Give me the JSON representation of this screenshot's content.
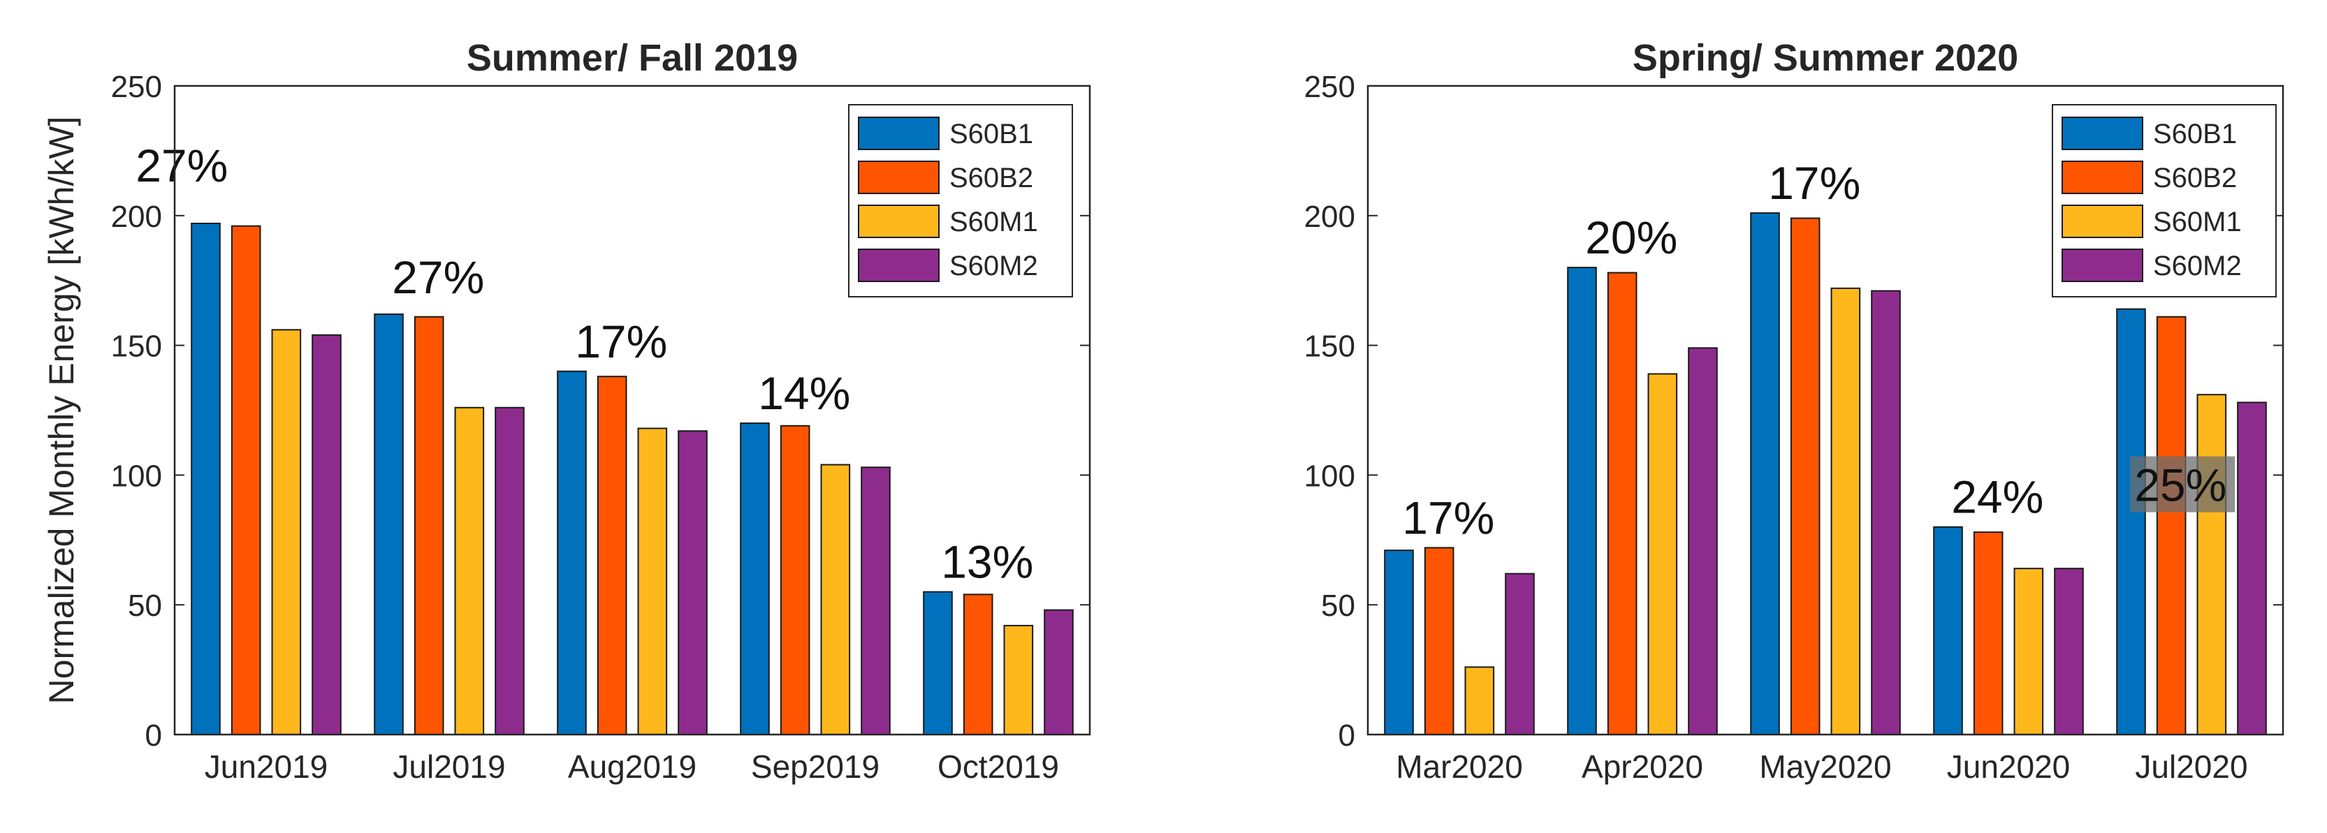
{
  "chart_data": [
    {
      "type": "bar",
      "title": "Summer/ Fall 2019",
      "ylabel": "Normalized Monthly Energy [kWh/kW]",
      "xlabel": "",
      "ylim": [
        0,
        250
      ],
      "yticks": [
        0,
        50,
        100,
        150,
        200,
        250
      ],
      "grid": false,
      "legend_position": "top-right",
      "categories": [
        "Jun2019",
        "Jul2019",
        "Aug2019",
        "Sep2019",
        "Oct2019"
      ],
      "series": [
        {
          "name": "S60B1",
          "color": "#0072BD",
          "values": [
            197,
            162,
            140,
            120,
            55
          ]
        },
        {
          "name": "S60B2",
          "color": "#FF5500",
          "values": [
            196,
            161,
            138,
            119,
            54
          ]
        },
        {
          "name": "S60M1",
          "color": "#FFB81C",
          "values": [
            156,
            126,
            118,
            104,
            42
          ]
        },
        {
          "name": "S60M2",
          "color": "#8E2C8E",
          "values": [
            154,
            126,
            117,
            103,
            48
          ]
        }
      ],
      "annotations": [
        "27%",
        "27%",
        "17%",
        "14%",
        "13%"
      ]
    },
    {
      "type": "bar",
      "title": "Spring/ Summer 2020",
      "ylabel": "",
      "xlabel": "",
      "ylim": [
        0,
        250
      ],
      "yticks": [
        0,
        50,
        100,
        150,
        200,
        250
      ],
      "grid": false,
      "legend_position": "top-right",
      "categories": [
        "Mar2020",
        "Apr2020",
        "May2020",
        "Jun2020",
        "Jul2020"
      ],
      "series": [
        {
          "name": "S60B1",
          "color": "#0072BD",
          "values": [
            71,
            180,
            201,
            80,
            164
          ]
        },
        {
          "name": "S60B2",
          "color": "#FF5500",
          "values": [
            72,
            178,
            199,
            78,
            161
          ]
        },
        {
          "name": "S60M1",
          "color": "#FFB81C",
          "values": [
            26,
            139,
            172,
            64,
            131
          ]
        },
        {
          "name": "S60M2",
          "color": "#8E2C8E",
          "values": [
            62,
            149,
            171,
            64,
            128
          ]
        }
      ],
      "annotations": [
        "17%",
        "20%",
        "17%",
        "24%",
        "25%"
      ]
    }
  ]
}
